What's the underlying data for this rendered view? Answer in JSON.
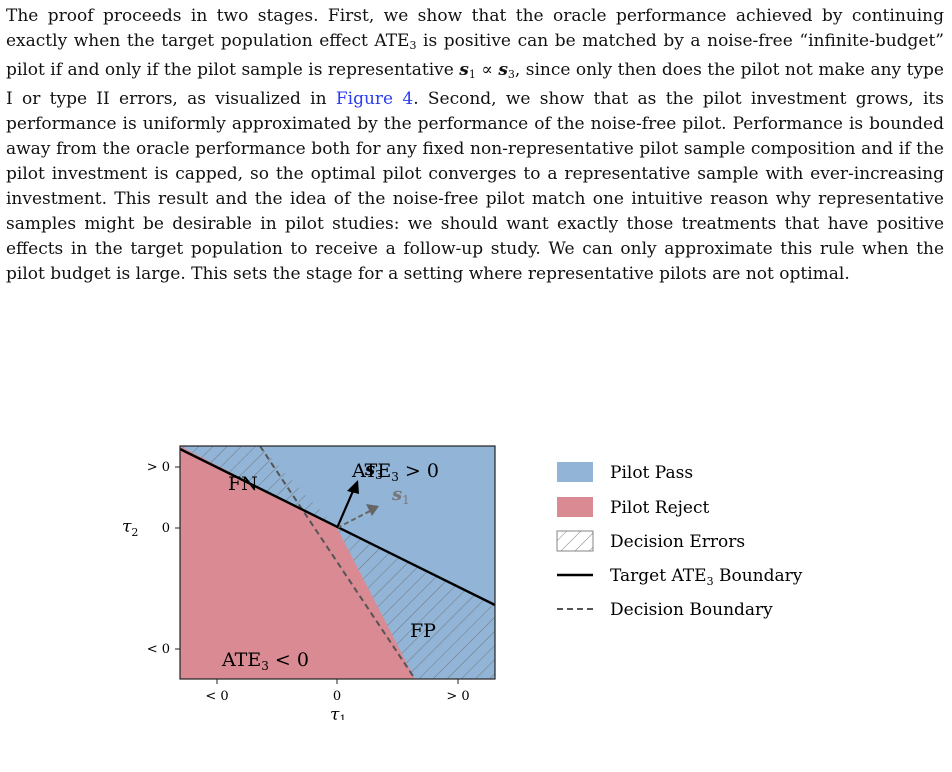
{
  "paragraph": {
    "t1": "The proof proceeds in two stages. First, we show that the oracle performance achieved by continuing exactly when the target population effect ATE",
    "t1_sub": "3",
    "t2": " is positive can be matched by a noise-free “infinite-budget” pilot if and only if the pilot sample is representative ",
    "s1": "s",
    "s1_sub": "1",
    "prop": " ∝ ",
    "s3": "s",
    "s3_sub": "3",
    "t3": ", since only then does the pilot not make any type I or type II errors, as visualized in ",
    "fig_link": "Figure 4",
    "t4": ". Second, we show that as the pilot investment grows, its performance is uniformly approximated by the performance of the noise-free pilot. Performance is bounded away from the oracle performance both for any fixed non-representative pilot sample composition and if the pilot investment is capped, so the optimal pilot converges to a representative sample with ever-increasing investment. This result and the idea of the noise-free pilot match one intuitive reason why representative samples might be desirable in pilot studies: we should want exactly those treatments that have positive effects in the target population to receive a follow-up study. We can only approximate this rule when the pilot budget is large. This sets the stage for a setting where representative pilots are not optimal."
  },
  "figure": {
    "region_fn": "FN",
    "region_fp": "FP",
    "region_pos": "ATE",
    "region_pos_sub": "3",
    "region_pos_rel": " > 0",
    "region_neg": "ATE",
    "region_neg_sub": "3",
    "region_neg_rel": " < 0",
    "vec_s3": "s",
    "vec_s3_sub": "3",
    "vec_s1": "s",
    "vec_s1_sub": "1",
    "ytick_top": "> 0",
    "ytick_mid": "0",
    "ytick_bot": "< 0",
    "xtick_left": "< 0",
    "xtick_mid": "0",
    "xtick_right": "> 0",
    "xlabel": "τ",
    "xlabel_sub": "1",
    "ylabel": "τ",
    "ylabel_sub": "2",
    "colors": {
      "pass": "#92b4d7",
      "reject": "#d98a93",
      "hatch": "#6f6f6f",
      "boundary": "#000000",
      "decision": "#555555",
      "s1": "#666666"
    },
    "legend": {
      "pass": "Pilot Pass",
      "reject": "Pilot Reject",
      "errors": "Decision Errors",
      "target_prefix": "Target ATE",
      "target_sub": "3",
      "target_suffix": " Boundary",
      "decision": "Decision Boundary"
    }
  }
}
